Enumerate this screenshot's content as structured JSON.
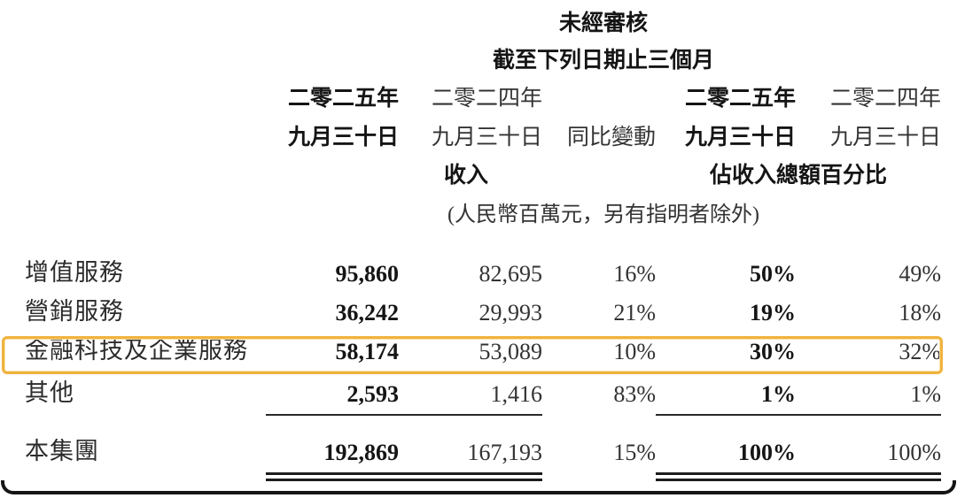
{
  "table": {
    "header": {
      "unaudited": "未經審核",
      "period": "截至下列日期止三個月",
      "col1_year": "二零二五年",
      "col1_date": "九月三十日",
      "col2_year": "二零二四年",
      "col2_date": "九月三十日",
      "yoy_label": "同比變動",
      "col4_year": "二零二五年",
      "col4_date": "九月三十日",
      "col5_year": "二零二四年",
      "col5_date": "九月三十日",
      "revenue_group_label": "收入",
      "pct_group_label": "佔收入總額百分比",
      "unit_note": "(人民幣百萬元，另有指明者除外)"
    },
    "rows": [
      {
        "label": "增值服務",
        "rev_2025": "95,860",
        "rev_2024": "82,695",
        "yoy": "16%",
        "pct_2025": "50%",
        "pct_2024": "49%",
        "highlight": false
      },
      {
        "label": "營銷服務",
        "rev_2025": "36,242",
        "rev_2024": "29,993",
        "yoy": "21%",
        "pct_2025": "19%",
        "pct_2024": "18%",
        "highlight": false
      },
      {
        "label": "金融科技及企業服務",
        "rev_2025": "58,174",
        "rev_2024": "53,089",
        "yoy": "10%",
        "pct_2025": "30%",
        "pct_2024": "32%",
        "highlight": true
      },
      {
        "label": "其他",
        "rev_2025": "2,593",
        "rev_2024": "1,416",
        "yoy": "83%",
        "pct_2025": "1%",
        "pct_2024": "1%",
        "highlight": false
      }
    ],
    "total_row": {
      "label": "本集團",
      "rev_2025": "192,869",
      "rev_2024": "167,193",
      "yoy": "15%",
      "pct_2025": "100%",
      "pct_2024": "100%"
    }
  },
  "colors": {
    "highlight_border": "#F0B23E",
    "frame": "#151515",
    "text_bold": "#151515",
    "text_regular": "#333333",
    "background": "#FFFFFF"
  }
}
